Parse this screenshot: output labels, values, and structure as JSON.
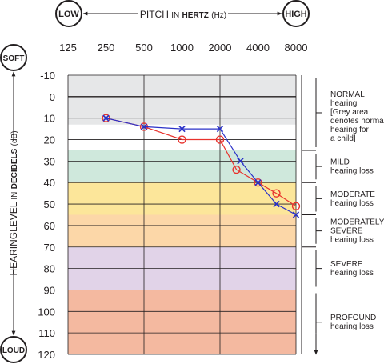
{
  "chart_data": {
    "type": "line",
    "x_axis": {
      "title_word": "PITCH",
      "title_in": "IN",
      "title_unit": "HERTZ",
      "title_abbrev": "(Hz)",
      "low_label": "LOW",
      "high_label": "HIGH",
      "scale": "log",
      "ticks": [
        125,
        250,
        500,
        1000,
        2000,
        4000,
        8000
      ],
      "tick_labels": [
        "125",
        "250",
        "500",
        "1000",
        "2000",
        "4000",
        "8000"
      ]
    },
    "y_axis": {
      "title_word": "HEARINGLEVEL",
      "title_in": "IN",
      "title_unit": "DECIBELS",
      "title_abbrev": "(dB)",
      "top_label": "SOFT",
      "bottom_label": "LOUD",
      "inverted": true,
      "ylim": [
        -10,
        120
      ],
      "ticks": [
        -10,
        0,
        10,
        20,
        30,
        40,
        50,
        60,
        70,
        80,
        90,
        100,
        110,
        120
      ],
      "tick_labels": [
        "-10",
        "0",
        "10",
        "20",
        "30",
        "40",
        "50",
        "60",
        "70",
        "80",
        "90",
        "100",
        "110",
        "120"
      ]
    },
    "bands": [
      {
        "from": -10,
        "to": 13,
        "color": "#e6e7e8"
      },
      {
        "from": 25,
        "to": 40,
        "color": "#cfe8dc"
      },
      {
        "from": 40,
        "to": 55,
        "color": "#fce69a"
      },
      {
        "from": 55,
        "to": 70,
        "color": "#fcd7a8"
      },
      {
        "from": 70,
        "to": 90,
        "color": "#e1d3e8"
      },
      {
        "from": 90,
        "to": 120,
        "color": "#f4b9a0"
      }
    ],
    "series": [
      {
        "marker": "circle",
        "color": "#e8322d",
        "points": [
          {
            "x": 250,
            "y": 10
          },
          {
            "x": 500,
            "y": 14
          },
          {
            "x": 1000,
            "y": 20
          },
          {
            "x": 2000,
            "y": 20
          },
          {
            "x": 2700,
            "y": 34
          },
          {
            "x": 4000,
            "y": 40
          },
          {
            "x": 5600,
            "y": 45
          },
          {
            "x": 8000,
            "y": 51
          }
        ]
      },
      {
        "marker": "cross",
        "color": "#2a31c8",
        "points": [
          {
            "x": 250,
            "y": 10
          },
          {
            "x": 500,
            "y": 14
          },
          {
            "x": 1000,
            "y": 15
          },
          {
            "x": 2000,
            "y": 15
          },
          {
            "x": 2900,
            "y": 30
          },
          {
            "x": 4000,
            "y": 40
          },
          {
            "x": 5600,
            "y": 50
          },
          {
            "x": 8000,
            "y": 55
          }
        ]
      }
    ],
    "categories": [
      {
        "from": -10,
        "to": 25,
        "title": "NORMAL",
        "lines": [
          "hearing",
          "[Grey area",
          "denotes normal",
          "hearing for",
          "a child]"
        ]
      },
      {
        "from": 25,
        "to": 40,
        "title": "MILD",
        "lines": [
          "hearing loss"
        ]
      },
      {
        "from": 40,
        "to": 55,
        "title": "MODERATE",
        "lines": [
          "hearing loss"
        ]
      },
      {
        "from": 55,
        "to": 70,
        "title": "MODERATELY",
        "lines": [
          "SEVERE",
          "hearing loss"
        ]
      },
      {
        "from": 70,
        "to": 90,
        "title": "SEVERE",
        "lines": [
          "hearing loss"
        ]
      },
      {
        "from": 90,
        "to": 120,
        "title": "PROFOUND",
        "lines": [
          "hearing loss"
        ]
      }
    ]
  }
}
